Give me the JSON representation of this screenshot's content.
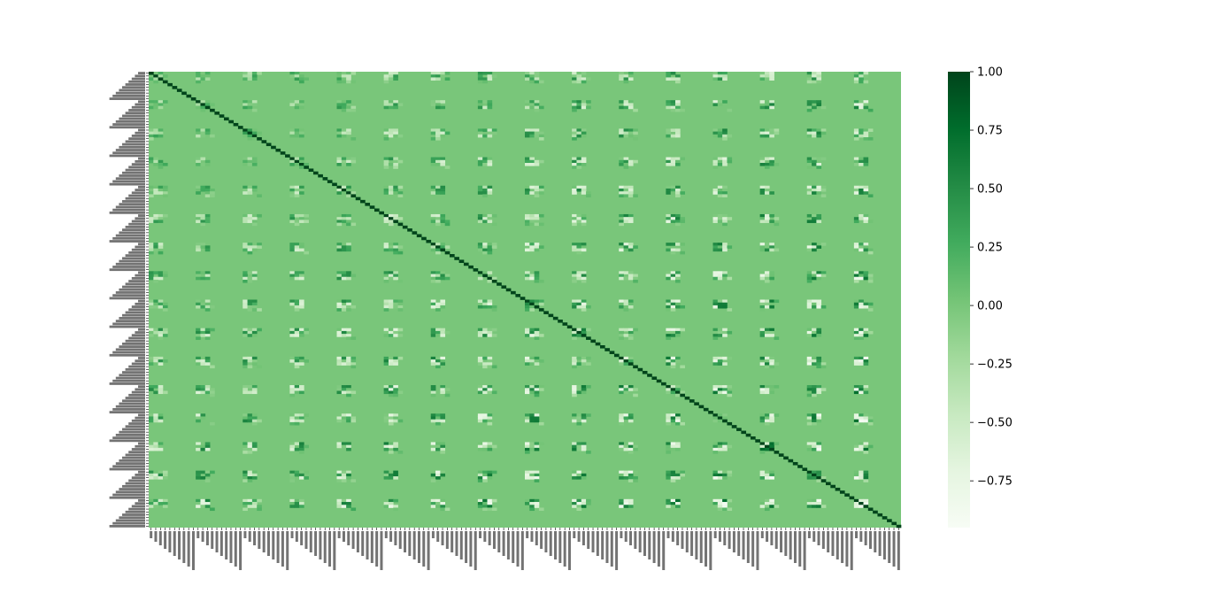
{
  "chart_data": {
    "type": "heatmap",
    "title": "",
    "xlabel": "",
    "ylabel": "",
    "colormap": "Greens",
    "colormap_stops": [
      "#f7fcf5",
      "#e5f5e0",
      "#c7e9c0",
      "#a1d99b",
      "#74c476",
      "#41ab5d",
      "#238b45",
      "#006d2c",
      "#00441b"
    ],
    "value_range": [
      -0.95,
      1.0
    ],
    "matrix_size": 160,
    "block_size": 10,
    "background_value": 0.0,
    "diagonal_value": 1.0,
    "description_of_structure": "correlation matrix: near-zero background, 1.0 diagonal, periodic off-diagonal clusters of stronger positive/negative correlations",
    "tick_labels_legible": false,
    "colorbar": {
      "ticks": [
        1.0,
        0.75,
        0.5,
        0.25,
        0.0,
        -0.25,
        -0.5,
        -0.75
      ],
      "tick_labels": [
        "1.00",
        "0.75",
        "0.50",
        "0.25",
        "0.00",
        "−0.25",
        "−0.50",
        "−0.75"
      ]
    }
  }
}
